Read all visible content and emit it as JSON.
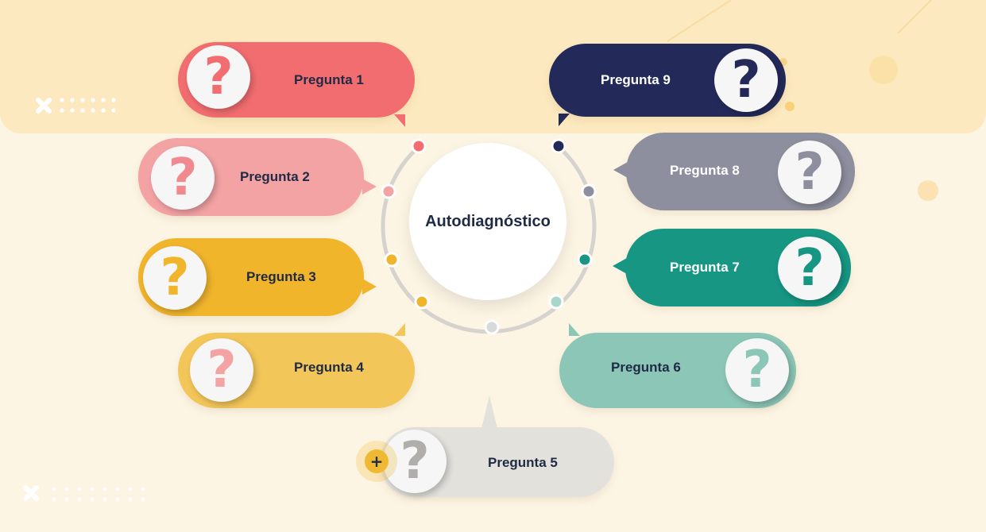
{
  "center": {
    "title": "Autodiagnóstico"
  },
  "plus_button": {
    "label": "+"
  },
  "question_mark": "?",
  "questions": [
    {
      "label": "Pregunta 1",
      "color": "#f26d70",
      "mark_color": "#f26d70",
      "text_color": "#1f2a44"
    },
    {
      "label": "Pregunta 2",
      "color": "#f4a3a5",
      "mark_color": "#f08a8e",
      "text_color": "#1f2a44"
    },
    {
      "label": "Pregunta 3",
      "color": "#f1b52c",
      "mark_color": "#f1b52c",
      "text_color": "#1f2a44"
    },
    {
      "label": "Pregunta 4",
      "color": "#f3c659",
      "mark_color": "#f4a3a5",
      "text_color": "#1f2a44"
    },
    {
      "label": "Pregunta 5",
      "color": "#e2e1dc",
      "mark_color": "#b0aeab",
      "text_color": "#1f2a44"
    },
    {
      "label": "Pregunta 6",
      "color": "#8cc6b6",
      "mark_color": "#8cc6b6",
      "text_color": "#1f2a44"
    },
    {
      "label": "Pregunta 7",
      "color": "#169683",
      "mark_color": "#169683",
      "text_color": "#ffffff"
    },
    {
      "label": "Pregunta 8",
      "color": "#8e8f9e",
      "mark_color": "#8e8f9e",
      "text_color": "#ffffff"
    },
    {
      "label": "Pregunta 9",
      "color": "#232a5a",
      "mark_color": "#232a5a",
      "text_color": "#ffffff"
    }
  ],
  "ring_dot_colors": [
    "#f26d70",
    "#f4a3a5",
    "#f1b52c",
    "#f1b52c",
    "#d9d9d9",
    "#a8d6ca",
    "#169683",
    "#8e8f9e",
    "#232a5a"
  ]
}
